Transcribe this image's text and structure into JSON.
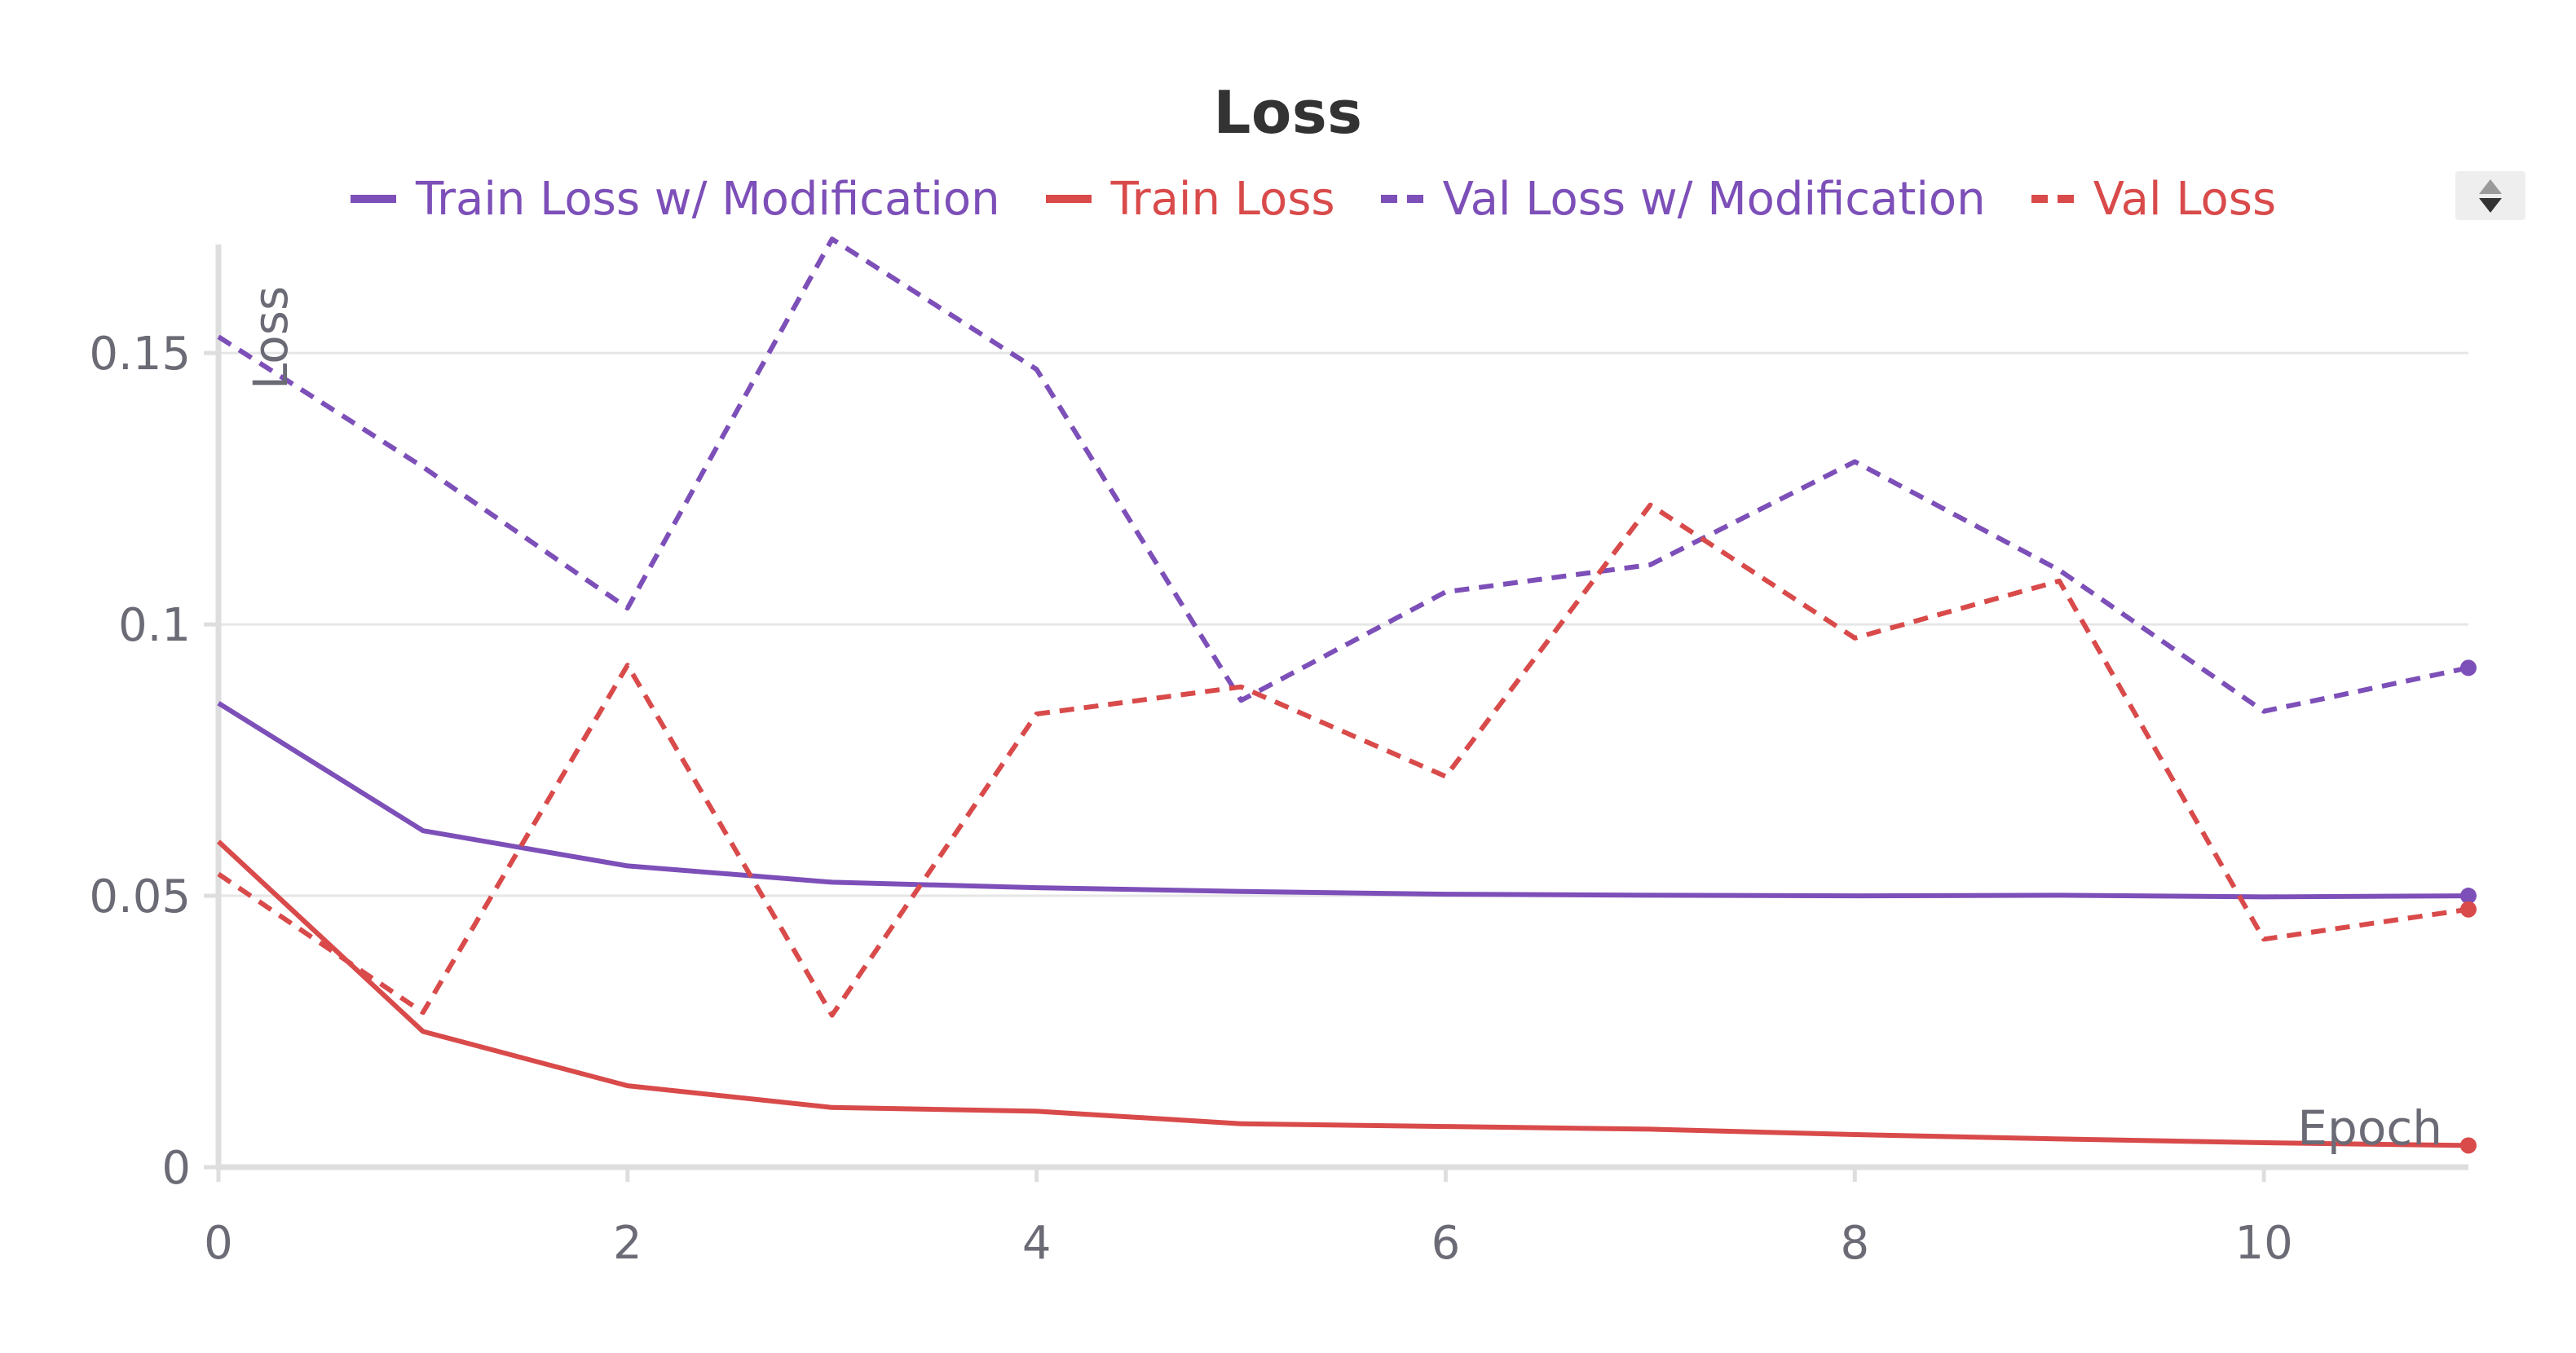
{
  "chart_data": {
    "type": "line",
    "title": "Loss",
    "xlabel": "Epoch",
    "ylabel": "Loss",
    "xlim": [
      0,
      11
    ],
    "ylim": [
      0,
      0.17
    ],
    "x_ticks": [
      "0",
      "2",
      "4",
      "6",
      "8",
      "10"
    ],
    "x_tick_values": [
      0,
      2,
      4,
      6,
      8,
      10
    ],
    "y_ticks": [
      "0",
      "0.05",
      "0.1",
      "0.15"
    ],
    "y_tick_values": [
      0,
      0.05,
      0.1,
      0.15
    ],
    "grid": "horizontal",
    "legend_position": "top",
    "x": [
      0,
      1,
      2,
      3,
      4,
      5,
      6,
      7,
      8,
      9,
      10,
      11
    ],
    "series": [
      {
        "name": "Train Loss w/ Modification",
        "color": "#7d4fb8",
        "style": "solid",
        "values": [
          0.0855,
          0.062,
          0.0555,
          0.0525,
          0.0515,
          0.0508,
          0.0503,
          0.0501,
          0.05,
          0.0501,
          0.0498,
          0.05
        ]
      },
      {
        "name": "Train Loss",
        "color": "#d94a4a",
        "style": "solid",
        "values": [
          0.06,
          0.025,
          0.015,
          0.011,
          0.0103,
          0.008,
          0.0075,
          0.007,
          0.006,
          0.0052,
          0.0045,
          0.004
        ]
      },
      {
        "name": "Val Loss w/ Modification",
        "color": "#7d4fb8",
        "style": "dashed",
        "values": [
          0.153,
          0.129,
          0.103,
          0.171,
          0.147,
          0.086,
          0.106,
          0.111,
          0.13,
          0.11,
          0.084,
          0.092
        ]
      },
      {
        "name": "Val Loss",
        "color": "#d94a4a",
        "style": "dashed",
        "values": [
          0.054,
          0.0285,
          0.0925,
          0.028,
          0.0835,
          0.0885,
          0.072,
          0.122,
          0.0975,
          0.108,
          0.042,
          0.0475
        ]
      }
    ]
  },
  "colors": {
    "purple": "#7d4fb8",
    "red": "#d94a4a",
    "grid": "#e6e6e6",
    "axis": "#dedede",
    "tick_text": "#6b6b76"
  },
  "controls": {
    "legend_scroll_icon": "scroll-arrows-icon"
  }
}
